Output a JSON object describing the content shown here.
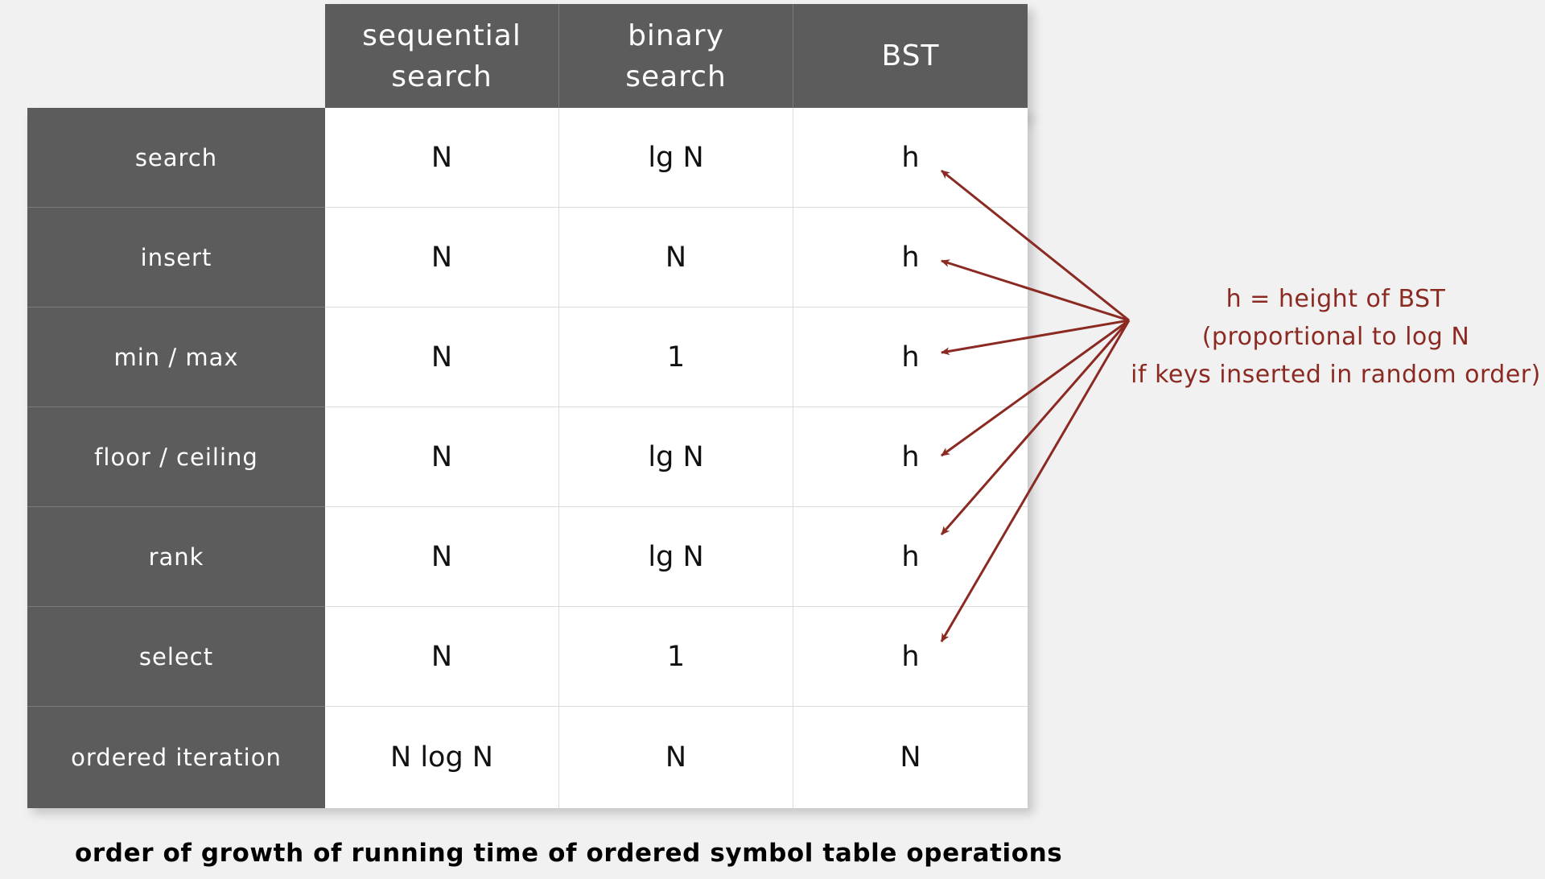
{
  "columns": [
    {
      "label_line1": "sequential",
      "label_line2": "search"
    },
    {
      "label_line1": "binary",
      "label_line2": "search"
    },
    {
      "label_line1": "BST",
      "label_line2": ""
    }
  ],
  "rows": [
    {
      "label": "search",
      "cells": [
        "N",
        "lg N",
        "h"
      ]
    },
    {
      "label": "insert",
      "cells": [
        "N",
        "N",
        "h"
      ]
    },
    {
      "label": "min / max",
      "cells": [
        "N",
        "1",
        "h"
      ]
    },
    {
      "label": "floor / ceiling",
      "cells": [
        "N",
        "lg N",
        "h"
      ]
    },
    {
      "label": "rank",
      "cells": [
        "N",
        "lg N",
        "h"
      ]
    },
    {
      "label": "select",
      "cells": [
        "N",
        "1",
        "h"
      ]
    },
    {
      "label": "ordered iteration",
      "cells": [
        "N log N",
        "N",
        "N"
      ]
    }
  ],
  "annotation": {
    "line1": "h = height of BST",
    "line2": "(proportional to log N",
    "line3": "if keys inserted in random order)"
  },
  "caption": "order of growth of running time of ordered symbol table operations",
  "colors": {
    "header_bg": "#5c5c5c",
    "header_text": "#ffffff",
    "cell_bg": "#ffffff",
    "background": "#f1f1f1",
    "annotation": "#8b2a22"
  }
}
